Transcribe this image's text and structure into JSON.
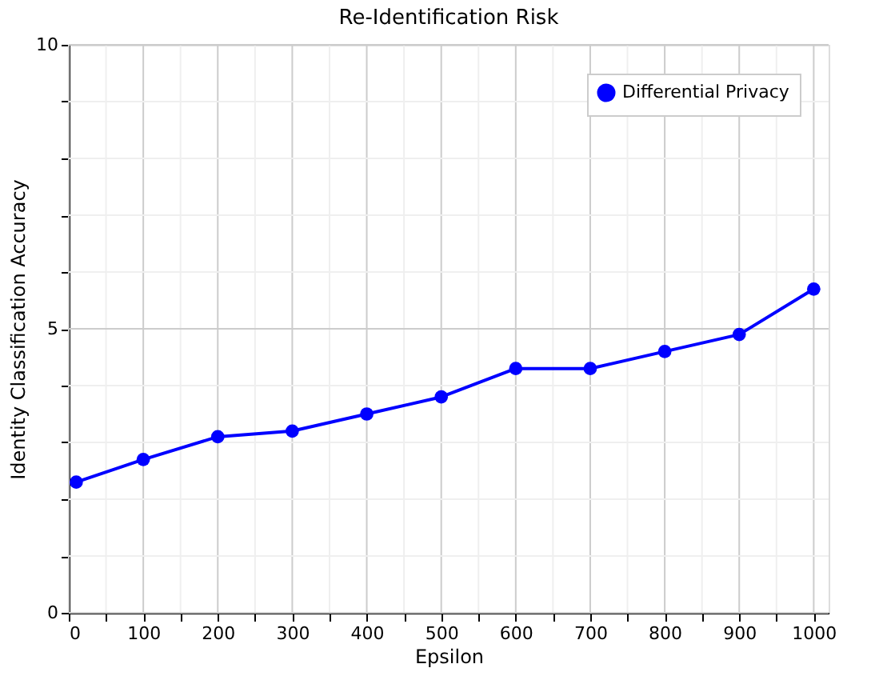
{
  "chart_data": {
    "type": "line",
    "title": "Re-Identification Risk",
    "xlabel": "Epsilon",
    "ylabel": "Identity Classification Accuracy",
    "x": [
      10,
      100,
      200,
      300,
      400,
      500,
      600,
      700,
      800,
      900,
      1000
    ],
    "series": [
      {
        "name": "Differential Privacy",
        "color": "#0000ff",
        "values": [
          2.3,
          2.7,
          3.1,
          3.2,
          3.5,
          3.8,
          4.3,
          4.3,
          4.6,
          4.9,
          5.7
        ]
      }
    ],
    "xlim": [
      0,
      1020
    ],
    "ylim": [
      0,
      10
    ],
    "xticks": [
      0,
      {
        "value": 50,
        "label": null
      },
      100,
      {
        "value": 150,
        "label": null
      },
      200,
      {
        "value": 250,
        "label": null
      },
      300,
      {
        "value": 350,
        "label": null
      },
      400,
      {
        "value": 450,
        "label": null
      },
      500,
      {
        "value": 550,
        "label": null
      },
      600,
      {
        "value": 650,
        "label": null
      },
      700,
      {
        "value": 750,
        "label": null
      },
      800,
      {
        "value": 850,
        "label": null
      },
      900,
      {
        "value": 950,
        "label": null
      },
      1000
    ],
    "yticks": [
      0,
      {
        "value": 1,
        "label": null
      },
      {
        "value": 2,
        "label": null
      },
      {
        "value": 3,
        "label": null
      },
      {
        "value": 4,
        "label": null
      },
      5,
      {
        "value": 6,
        "label": null
      },
      {
        "value": 7,
        "label": null
      },
      {
        "value": 8,
        "label": null
      },
      {
        "value": 9,
        "label": null
      },
      10
    ],
    "grid": true,
    "legend": "top right",
    "marker": "circle",
    "line_style": "solid"
  }
}
